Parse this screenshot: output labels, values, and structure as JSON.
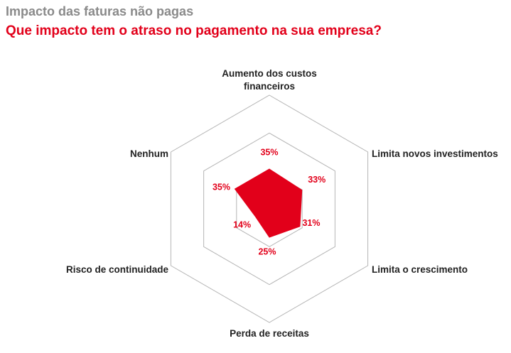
{
  "header": {
    "title": "Impacto das faturas não pagas",
    "subtitle": "Que impacto tem o atraso no pagamento na sua empresa?"
  },
  "colors": {
    "accent": "#e2001a",
    "title_gray": "#8a8a8a",
    "grid": "#b5b5b5"
  },
  "chart_data": {
    "type": "radar",
    "max": 100,
    "rings": 3,
    "categories": [
      "Aumento dos custos financeiros",
      "Limita novos investimentos",
      "Limita o crescimento",
      "Perda de receitas",
      "Risco de continuidade",
      "Nenhum"
    ],
    "category_lines": [
      [
        "Aumento dos custos",
        "financeiros"
      ],
      [
        "Limita novos investimentos"
      ],
      [
        "Limita o crescimento"
      ],
      [
        "Perda de receitas"
      ],
      [
        "Risco de continuidade"
      ],
      [
        "Nenhum"
      ]
    ],
    "values": [
      35,
      33,
      31,
      25,
      14,
      35
    ],
    "value_labels": [
      "35%",
      "33%",
      "31%",
      "25%",
      "14%",
      "35%"
    ]
  }
}
